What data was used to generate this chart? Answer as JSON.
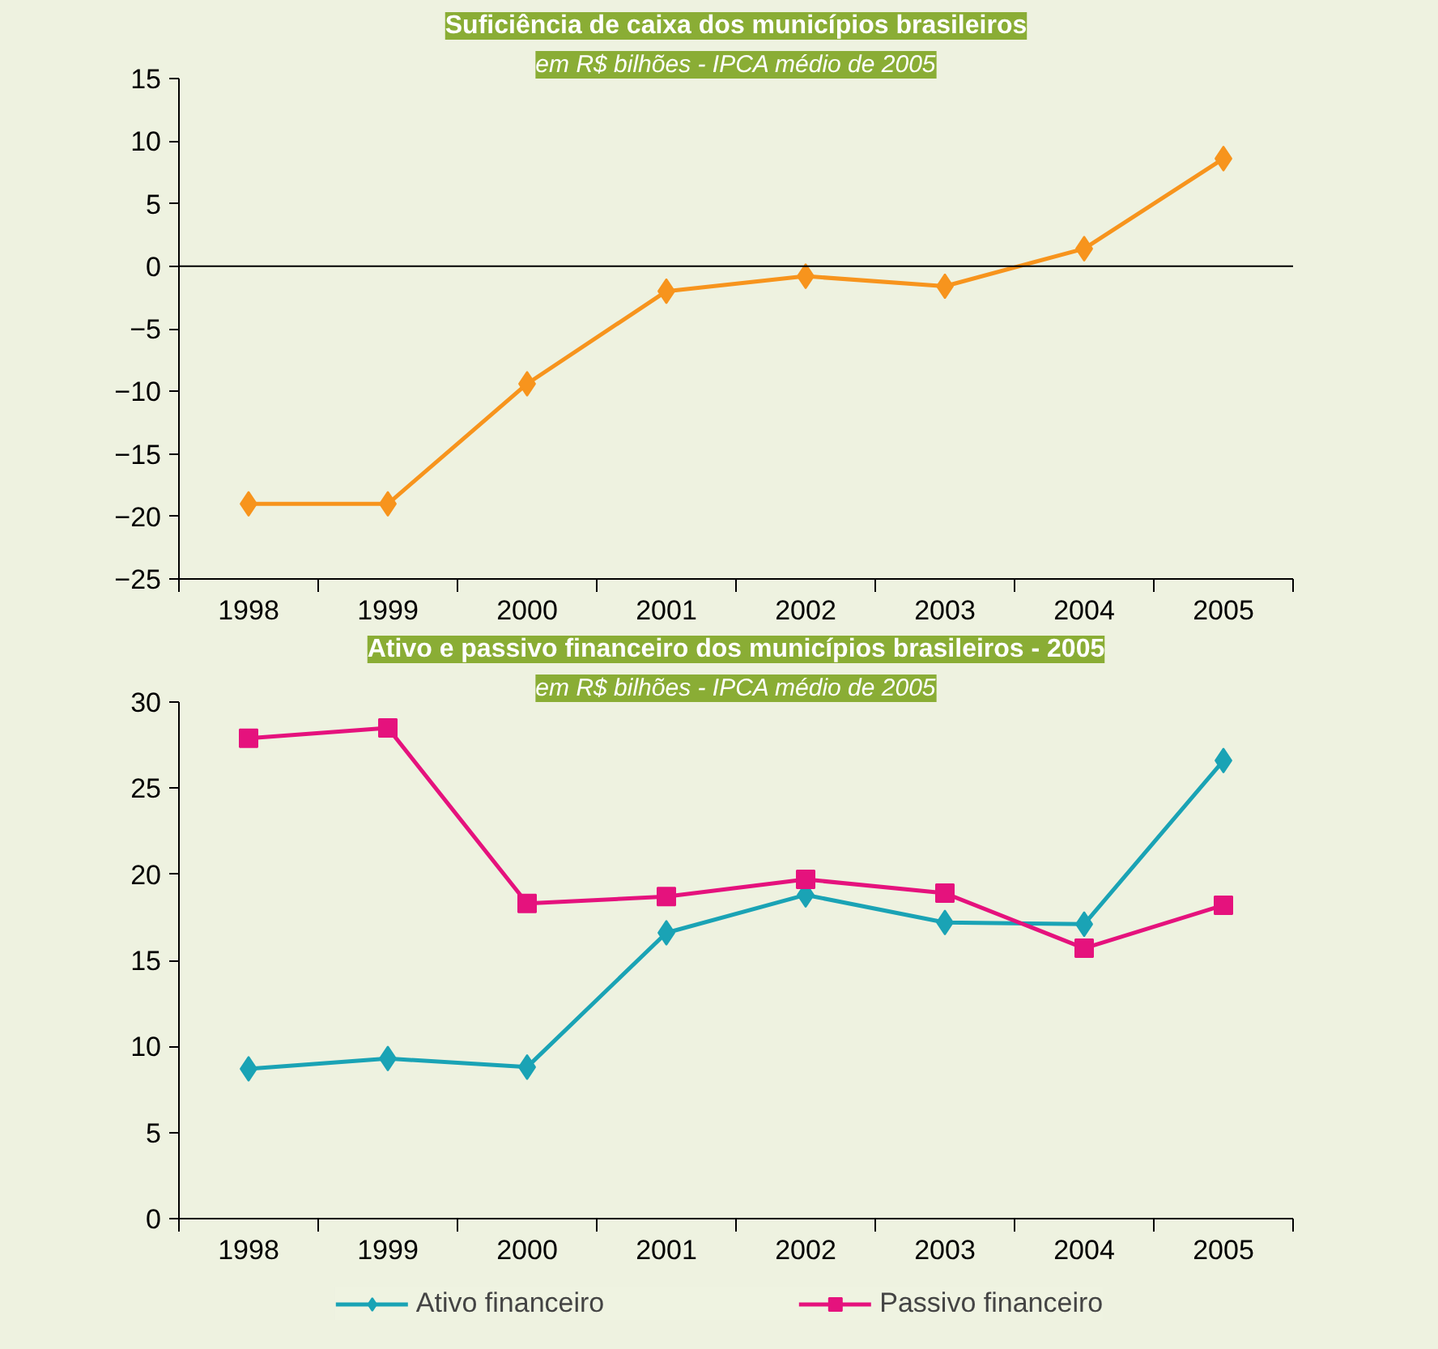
{
  "chart_data": [
    {
      "type": "line",
      "title": "Suficiência de caixa dos municípios brasileiros",
      "subtitle": "em R$ bilhões - IPCA médio de 2005",
      "categories": [
        "1998",
        "1999",
        "2000",
        "2001",
        "2002",
        "2003",
        "2004",
        "2005"
      ],
      "series": [
        {
          "color": "#f7941d",
          "marker": "diamond",
          "values": [
            -19,
            -19,
            -9.4,
            -2,
            -0.8,
            -1.6,
            1.4,
            8.6
          ]
        }
      ],
      "ylim": [
        -25,
        15
      ],
      "yticks": [
        -25,
        -20,
        -15,
        -10,
        -5,
        0,
        5,
        10,
        15
      ],
      "ref_lines": [
        {
          "axis": "y",
          "value": 0
        }
      ],
      "grid": false,
      "legend": false,
      "line_style": "solid"
    },
    {
      "type": "line",
      "title": "Ativo e passivo financeiro dos municípios brasileiros - 2005",
      "subtitle": "em R$ bilhões - IPCA médio de 2005",
      "categories": [
        "1998",
        "1999",
        "2000",
        "2001",
        "2002",
        "2003",
        "2004",
        "2005"
      ],
      "series": [
        {
          "name": "Ativo financeiro",
          "color": "#1aa3b5",
          "marker": "diamond",
          "values": [
            8.7,
            9.3,
            8.8,
            16.6,
            18.8,
            17.2,
            17.1,
            26.6
          ]
        },
        {
          "name": "Passivo financeiro",
          "color": "#e5127d",
          "marker": "square",
          "values": [
            27.9,
            28.5,
            18.3,
            18.7,
            19.7,
            18.9,
            15.7,
            18.2
          ]
        }
      ],
      "ylim": [
        0,
        30
      ],
      "yticks": [
        0,
        5,
        10,
        15,
        20,
        25,
        30
      ],
      "grid": false,
      "legend": "bottom",
      "line_style": "solid"
    }
  ]
}
